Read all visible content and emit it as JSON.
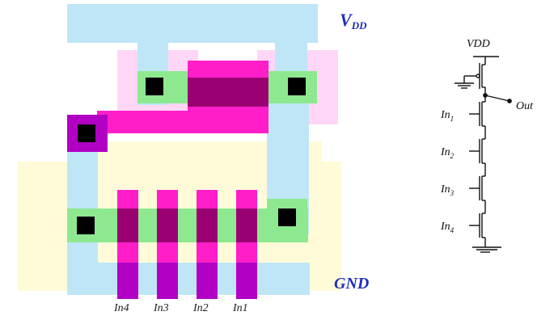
{
  "layout": {
    "vdd_label": "V",
    "vdd_sub": "DD",
    "gnd_label": "GND",
    "input_labels": [
      "In4",
      "In3",
      "In2",
      "In1"
    ]
  },
  "schematic": {
    "vdd_label": "VDD",
    "out_label": "Out",
    "inputs": [
      {
        "name": "In",
        "sub": "1"
      },
      {
        "name": "In",
        "sub": "2"
      },
      {
        "name": "In",
        "sub": "3"
      },
      {
        "name": "In",
        "sub": "4"
      }
    ]
  },
  "colors": {
    "metal": "#bfe6f7",
    "diffusion": "#8ee890",
    "poly": "#ff1ec8",
    "poly_dark": "#b100c4",
    "contact": "#000000",
    "well_pink": "#ffd6f5",
    "well_yellow": "#fffbd8",
    "label_blue": "#1f2fb8"
  }
}
